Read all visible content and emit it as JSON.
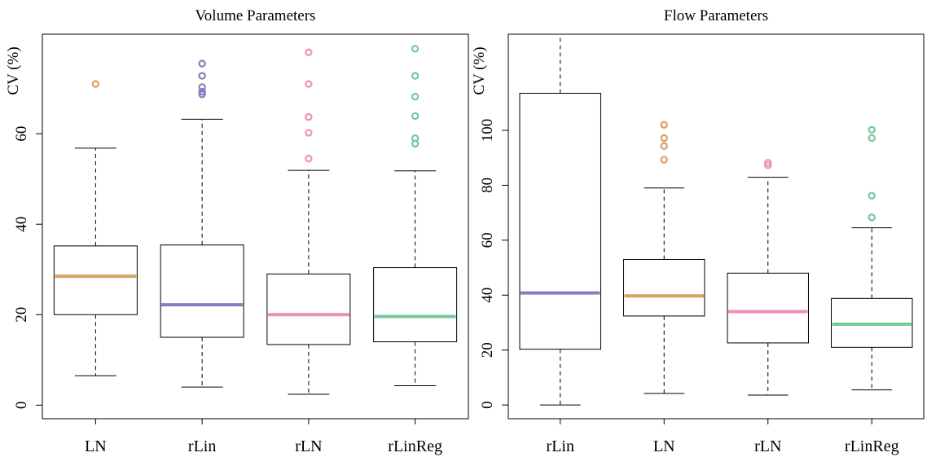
{
  "chart_data": [
    {
      "type": "box",
      "title": "Volume Parameters",
      "xlabel": "",
      "ylabel": "CV (%)",
      "ylim": [
        -3,
        82
      ],
      "yticks": [
        0,
        20,
        40,
        60
      ],
      "grid": false,
      "categories": [
        "LN",
        "rLin",
        "rLN",
        "rLinReg"
      ],
      "boxes": [
        {
          "category": "LN",
          "color": "#D9A066",
          "whisker_low": 6.5,
          "q1": 20,
          "median": 28.5,
          "q3": 35.2,
          "whisker_high": 56.8,
          "outliers": [
            71
          ]
        },
        {
          "category": "rLin",
          "color": "#8C7BBF",
          "whisker_low": 4,
          "q1": 15,
          "median": 22.2,
          "q3": 35.4,
          "whisker_high": 63.2,
          "outliers": [
            68.7,
            69.3,
            70.3,
            72.8,
            75.5
          ]
        },
        {
          "category": "rLN",
          "color": "#EE8FBB",
          "whisker_low": 2.4,
          "q1": 13.4,
          "median": 20,
          "q3": 29,
          "whisker_high": 51.9,
          "outliers": [
            54.5,
            60.2,
            63.7,
            71,
            78
          ]
        },
        {
          "category": "rLinReg",
          "color": "#77C9A0",
          "whisker_low": 4.3,
          "q1": 14,
          "median": 19.6,
          "q3": 30.4,
          "whisker_high": 51.8,
          "outliers": [
            57.8,
            59,
            63.9,
            68.2,
            72.8,
            78.8
          ]
        }
      ]
    },
    {
      "type": "box",
      "title": "Flow Parameters",
      "xlabel": "",
      "ylabel": "CV (%)",
      "ylim": [
        -5,
        135
      ],
      "yticks": [
        0,
        20,
        40,
        60,
        80,
        100
      ],
      "grid": false,
      "categories": [
        "rLin",
        "LN",
        "rLN",
        "rLinReg"
      ],
      "boxes": [
        {
          "category": "rLin",
          "color": "#8C7BBF",
          "whisker_low": 0,
          "q1": 20.3,
          "median": 40.8,
          "q3": 113.5,
          "whisker_high": 135,
          "outliers": []
        },
        {
          "category": "LN",
          "color": "#D9A066",
          "whisker_low": 4.2,
          "q1": 32.4,
          "median": 39.7,
          "q3": 53,
          "whisker_high": 79,
          "outliers": [
            89.3,
            94.3,
            97.2,
            102
          ]
        },
        {
          "category": "rLN",
          "color": "#EE8FBB",
          "whisker_low": 3.6,
          "q1": 22.6,
          "median": 34,
          "q3": 48,
          "whisker_high": 82.9,
          "outliers": [
            87.3,
            88.2
          ]
        },
        {
          "category": "rLinReg",
          "color": "#77C9A0",
          "whisker_low": 5.5,
          "q1": 21,
          "median": 29.4,
          "q3": 38.8,
          "whisker_high": 64.5,
          "outliers": [
            68.3,
            76.2,
            97.2,
            100.2
          ]
        }
      ]
    }
  ]
}
